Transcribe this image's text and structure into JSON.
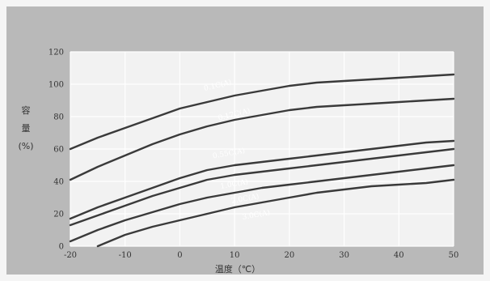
{
  "chart_data": {
    "type": "line",
    "xlabel": "温度（℃）",
    "ylabel": [
      "容",
      "量",
      "(%)"
    ],
    "xlim": [
      -20,
      50
    ],
    "ylim": [
      0,
      120
    ],
    "x_ticks": [
      -20,
      -10,
      0,
      10,
      20,
      30,
      40,
      50
    ],
    "y_ticks": [
      0,
      20,
      40,
      60,
      80,
      100,
      120
    ],
    "grid": true,
    "colors": {
      "figure_bg": "#b9b9b9",
      "plot_bg": "#f2f2f2",
      "grid": "#ffffff",
      "line": "#3a3a3a"
    },
    "series": [
      {
        "name": "0.1C(A)",
        "label_at": [
          7,
          98
        ],
        "points": [
          [
            -20,
            60
          ],
          [
            -15,
            67
          ],
          [
            -10,
            73
          ],
          [
            -5,
            79
          ],
          [
            0,
            85
          ],
          [
            5,
            89
          ],
          [
            10,
            93
          ],
          [
            15,
            96
          ],
          [
            20,
            99
          ],
          [
            25,
            101
          ],
          [
            30,
            102
          ],
          [
            35,
            103
          ],
          [
            40,
            104
          ],
          [
            45,
            105
          ],
          [
            50,
            106
          ]
        ]
      },
      {
        "name": "0.17C(A)",
        "label_at": [
          10,
          80
        ],
        "points": [
          [
            -20,
            41
          ],
          [
            -15,
            49
          ],
          [
            -10,
            56
          ],
          [
            -5,
            63
          ],
          [
            0,
            69
          ],
          [
            5,
            74
          ],
          [
            10,
            78
          ],
          [
            15,
            81
          ],
          [
            20,
            84
          ],
          [
            25,
            86
          ],
          [
            30,
            87
          ],
          [
            35,
            88
          ],
          [
            40,
            89
          ],
          [
            45,
            90
          ],
          [
            50,
            91
          ]
        ]
      },
      {
        "name": "0.55C(A)",
        "label_at": [
          9,
          56
        ],
        "points": [
          [
            -20,
            17
          ],
          [
            -15,
            24
          ],
          [
            -10,
            30
          ],
          [
            -5,
            36
          ],
          [
            0,
            42
          ],
          [
            5,
            47
          ],
          [
            10,
            50
          ],
          [
            15,
            52
          ],
          [
            20,
            54
          ],
          [
            25,
            56
          ],
          [
            30,
            58
          ],
          [
            35,
            60
          ],
          [
            40,
            62
          ],
          [
            45,
            64
          ],
          [
            50,
            65
          ]
        ]
      },
      {
        "name": "1.0C(A)",
        "label_at": [
          10,
          37
        ],
        "points": [
          [
            -20,
            13
          ],
          [
            -15,
            19
          ],
          [
            -10,
            25
          ],
          [
            -5,
            31
          ],
          [
            0,
            36
          ],
          [
            5,
            41
          ],
          [
            10,
            44
          ],
          [
            15,
            46
          ],
          [
            20,
            48
          ],
          [
            25,
            50
          ],
          [
            30,
            52
          ],
          [
            35,
            54
          ],
          [
            40,
            56
          ],
          [
            45,
            58
          ],
          [
            50,
            60
          ]
        ]
      },
      {
        "name": "2.0C(A)",
        "label_at": [
          12,
          28
        ],
        "points": [
          [
            -20,
            3
          ],
          [
            -15,
            10
          ],
          [
            -10,
            16
          ],
          [
            -5,
            21
          ],
          [
            0,
            26
          ],
          [
            5,
            30
          ],
          [
            10,
            33
          ],
          [
            15,
            36
          ],
          [
            20,
            38
          ],
          [
            25,
            40
          ],
          [
            30,
            42
          ],
          [
            35,
            44
          ],
          [
            40,
            46
          ],
          [
            45,
            48
          ],
          [
            50,
            50
          ]
        ]
      },
      {
        "name": "3.0C(A)",
        "label_at": [
          14,
          18
        ],
        "points": [
          [
            -15,
            0
          ],
          [
            -10,
            7
          ],
          [
            -5,
            12
          ],
          [
            0,
            16
          ],
          [
            5,
            20
          ],
          [
            10,
            24
          ],
          [
            15,
            27
          ],
          [
            20,
            30
          ],
          [
            25,
            33
          ],
          [
            30,
            35
          ],
          [
            35,
            37
          ],
          [
            40,
            38
          ],
          [
            45,
            39
          ],
          [
            50,
            41
          ]
        ]
      }
    ]
  }
}
